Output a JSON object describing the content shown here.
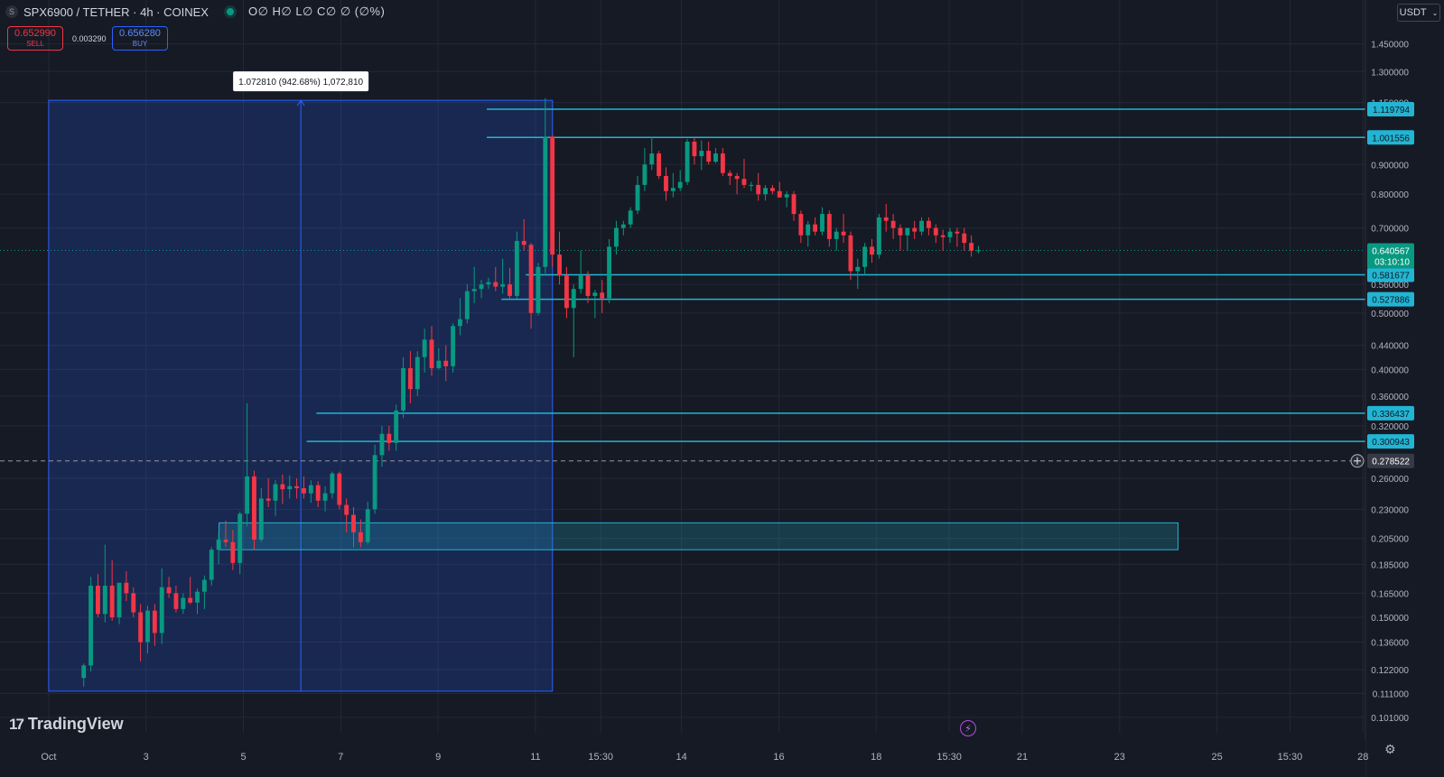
{
  "header": {
    "symbol_icon": "S",
    "title": "SPX6900 / TETHER · 4h · COINEX",
    "ohlc": "O∅ H∅ L∅ C∅ ∅ (∅%)"
  },
  "trade": {
    "sell_price": "0.652990",
    "sell_label": "SELL",
    "spread": "0.003290",
    "buy_price": "0.656280",
    "buy_label": "BUY"
  },
  "currency": {
    "label": "USDT",
    "icon": "chevron-down-icon"
  },
  "branding": {
    "name": "TradingView",
    "mark": "17"
  },
  "colors": {
    "up": "#089981",
    "down": "#f23645",
    "level": "#22b5d3",
    "range": "#2962ff",
    "background": "#161a25"
  },
  "chart_data": {
    "type": "candlestick",
    "y_scale": "log",
    "ylim": [
      0.095,
      1.55
    ],
    "y_ticks": [
      "1.450000",
      "1.300000",
      "1.150000",
      "0.900000",
      "0.800000",
      "0.700000",
      "0.560000",
      "0.500000",
      "0.440000",
      "0.400000",
      "0.360000",
      "0.320000",
      "0.260000",
      "0.230000",
      "0.205000",
      "0.185000",
      "0.165000",
      "0.150000",
      "0.136000",
      "0.122000",
      "0.111000",
      "0.101000"
    ],
    "x_ticks": [
      {
        "label": "Oct",
        "day": 1
      },
      {
        "label": "3",
        "day": 3
      },
      {
        "label": "5",
        "day": 5
      },
      {
        "label": "7",
        "day": 7
      },
      {
        "label": "9",
        "day": 9
      },
      {
        "label": "11",
        "day": 11
      },
      {
        "label": "15:30",
        "day": 12.34
      },
      {
        "label": "14",
        "day": 14
      },
      {
        "label": "16",
        "day": 16
      },
      {
        "label": "18",
        "day": 18
      },
      {
        "label": "15:30",
        "day": 19.5
      },
      {
        "label": "21",
        "day": 21
      },
      {
        "label": "23",
        "day": 23
      },
      {
        "label": "25",
        "day": 25
      },
      {
        "label": "15:30",
        "day": 26.5
      },
      {
        "label": "28",
        "day": 28
      }
    ],
    "xlim": [
      0.0,
      28.05
    ],
    "candles": [
      {
        "o": 0.118,
        "h": 0.125,
        "l": 0.114,
        "c": 0.124
      },
      {
        "o": 0.124,
        "h": 0.176,
        "l": 0.121,
        "c": 0.17
      },
      {
        "o": 0.17,
        "h": 0.178,
        "l": 0.15,
        "c": 0.152
      },
      {
        "o": 0.152,
        "h": 0.2,
        "l": 0.147,
        "c": 0.17
      },
      {
        "o": 0.17,
        "h": 0.188,
        "l": 0.148,
        "c": 0.15
      },
      {
        "o": 0.15,
        "h": 0.172,
        "l": 0.146,
        "c": 0.172
      },
      {
        "o": 0.172,
        "h": 0.18,
        "l": 0.16,
        "c": 0.165
      },
      {
        "o": 0.165,
        "h": 0.169,
        "l": 0.15,
        "c": 0.153
      },
      {
        "o": 0.153,
        "h": 0.158,
        "l": 0.126,
        "c": 0.136
      },
      {
        "o": 0.136,
        "h": 0.157,
        "l": 0.13,
        "c": 0.154
      },
      {
        "o": 0.154,
        "h": 0.158,
        "l": 0.134,
        "c": 0.141
      },
      {
        "o": 0.141,
        "h": 0.182,
        "l": 0.135,
        "c": 0.169
      },
      {
        "o": 0.169,
        "h": 0.176,
        "l": 0.162,
        "c": 0.165
      },
      {
        "o": 0.165,
        "h": 0.17,
        "l": 0.153,
        "c": 0.155
      },
      {
        "o": 0.155,
        "h": 0.165,
        "l": 0.152,
        "c": 0.162
      },
      {
        "o": 0.162,
        "h": 0.176,
        "l": 0.158,
        "c": 0.159
      },
      {
        "o": 0.159,
        "h": 0.168,
        "l": 0.152,
        "c": 0.166
      },
      {
        "o": 0.166,
        "h": 0.177,
        "l": 0.155,
        "c": 0.174
      },
      {
        "o": 0.174,
        "h": 0.198,
        "l": 0.17,
        "c": 0.196
      },
      {
        "o": 0.196,
        "h": 0.21,
        "l": 0.185,
        "c": 0.204
      },
      {
        "o": 0.204,
        "h": 0.22,
        "l": 0.198,
        "c": 0.202
      },
      {
        "o": 0.202,
        "h": 0.212,
        "l": 0.181,
        "c": 0.186
      },
      {
        "o": 0.186,
        "h": 0.228,
        "l": 0.178,
        "c": 0.226
      },
      {
        "o": 0.226,
        "h": 0.35,
        "l": 0.215,
        "c": 0.262
      },
      {
        "o": 0.262,
        "h": 0.268,
        "l": 0.196,
        "c": 0.204
      },
      {
        "o": 0.204,
        "h": 0.25,
        "l": 0.202,
        "c": 0.24
      },
      {
        "o": 0.24,
        "h": 0.26,
        "l": 0.232,
        "c": 0.238
      },
      {
        "o": 0.238,
        "h": 0.258,
        "l": 0.224,
        "c": 0.254
      },
      {
        "o": 0.254,
        "h": 0.264,
        "l": 0.235,
        "c": 0.249
      },
      {
        "o": 0.249,
        "h": 0.263,
        "l": 0.24,
        "c": 0.252
      },
      {
        "o": 0.252,
        "h": 0.26,
        "l": 0.24,
        "c": 0.25
      },
      {
        "o": 0.25,
        "h": 0.262,
        "l": 0.24,
        "c": 0.245
      },
      {
        "o": 0.245,
        "h": 0.258,
        "l": 0.236,
        "c": 0.253
      },
      {
        "o": 0.253,
        "h": 0.257,
        "l": 0.232,
        "c": 0.238
      },
      {
        "o": 0.238,
        "h": 0.252,
        "l": 0.228,
        "c": 0.245
      },
      {
        "o": 0.245,
        "h": 0.267,
        "l": 0.24,
        "c": 0.265
      },
      {
        "o": 0.265,
        "h": 0.267,
        "l": 0.23,
        "c": 0.234
      },
      {
        "o": 0.234,
        "h": 0.24,
        "l": 0.21,
        "c": 0.225
      },
      {
        "o": 0.225,
        "h": 0.232,
        "l": 0.198,
        "c": 0.21
      },
      {
        "o": 0.21,
        "h": 0.221,
        "l": 0.198,
        "c": 0.202
      },
      {
        "o": 0.202,
        "h": 0.237,
        "l": 0.2,
        "c": 0.23
      },
      {
        "o": 0.23,
        "h": 0.297,
        "l": 0.226,
        "c": 0.285
      },
      {
        "o": 0.285,
        "h": 0.32,
        "l": 0.272,
        "c": 0.31
      },
      {
        "o": 0.31,
        "h": 0.32,
        "l": 0.29,
        "c": 0.299
      },
      {
        "o": 0.299,
        "h": 0.348,
        "l": 0.29,
        "c": 0.34
      },
      {
        "o": 0.34,
        "h": 0.42,
        "l": 0.33,
        "c": 0.402
      },
      {
        "o": 0.402,
        "h": 0.43,
        "l": 0.35,
        "c": 0.37
      },
      {
        "o": 0.37,
        "h": 0.43,
        "l": 0.36,
        "c": 0.42
      },
      {
        "o": 0.42,
        "h": 0.47,
        "l": 0.395,
        "c": 0.45
      },
      {
        "o": 0.45,
        "h": 0.475,
        "l": 0.39,
        "c": 0.402
      },
      {
        "o": 0.402,
        "h": 0.435,
        "l": 0.4,
        "c": 0.414
      },
      {
        "o": 0.414,
        "h": 0.44,
        "l": 0.382,
        "c": 0.405
      },
      {
        "o": 0.405,
        "h": 0.48,
        "l": 0.395,
        "c": 0.475
      },
      {
        "o": 0.475,
        "h": 0.53,
        "l": 0.458,
        "c": 0.488
      },
      {
        "o": 0.488,
        "h": 0.56,
        "l": 0.48,
        "c": 0.545
      },
      {
        "o": 0.545,
        "h": 0.6,
        "l": 0.52,
        "c": 0.55
      },
      {
        "o": 0.55,
        "h": 0.57,
        "l": 0.53,
        "c": 0.56
      },
      {
        "o": 0.56,
        "h": 0.575,
        "l": 0.55,
        "c": 0.565
      },
      {
        "o": 0.565,
        "h": 0.6,
        "l": 0.545,
        "c": 0.555
      },
      {
        "o": 0.555,
        "h": 0.62,
        "l": 0.54,
        "c": 0.56
      },
      {
        "o": 0.56,
        "h": 0.598,
        "l": 0.53,
        "c": 0.535
      },
      {
        "o": 0.535,
        "h": 0.69,
        "l": 0.53,
        "c": 0.665
      },
      {
        "o": 0.665,
        "h": 0.725,
        "l": 0.64,
        "c": 0.655
      },
      {
        "o": 0.655,
        "h": 0.66,
        "l": 0.47,
        "c": 0.5
      },
      {
        "o": 0.5,
        "h": 0.61,
        "l": 0.495,
        "c": 0.6
      },
      {
        "o": 0.6,
        "h": 1.17,
        "l": 0.585,
        "c": 1.005
      },
      {
        "o": 1.005,
        "h": 1.01,
        "l": 0.6,
        "c": 0.63
      },
      {
        "o": 0.63,
        "h": 0.69,
        "l": 0.56,
        "c": 0.58
      },
      {
        "o": 0.58,
        "h": 0.6,
        "l": 0.49,
        "c": 0.51
      },
      {
        "o": 0.51,
        "h": 0.56,
        "l": 0.42,
        "c": 0.55
      },
      {
        "o": 0.55,
        "h": 0.64,
        "l": 0.54,
        "c": 0.58
      },
      {
        "o": 0.58,
        "h": 0.59,
        "l": 0.52,
        "c": 0.535
      },
      {
        "o": 0.535,
        "h": 0.548,
        "l": 0.49,
        "c": 0.542
      },
      {
        "o": 0.542,
        "h": 0.57,
        "l": 0.5,
        "c": 0.53
      },
      {
        "o": 0.53,
        "h": 0.67,
        "l": 0.52,
        "c": 0.65
      },
      {
        "o": 0.65,
        "h": 0.72,
        "l": 0.63,
        "c": 0.7
      },
      {
        "o": 0.7,
        "h": 0.72,
        "l": 0.68,
        "c": 0.71
      },
      {
        "o": 0.71,
        "h": 0.76,
        "l": 0.7,
        "c": 0.75
      },
      {
        "o": 0.75,
        "h": 0.86,
        "l": 0.74,
        "c": 0.83
      },
      {
        "o": 0.83,
        "h": 0.96,
        "l": 0.81,
        "c": 0.9
      },
      {
        "o": 0.9,
        "h": 1.005,
        "l": 0.88,
        "c": 0.94
      },
      {
        "o": 0.94,
        "h": 0.95,
        "l": 0.85,
        "c": 0.86
      },
      {
        "o": 0.86,
        "h": 0.89,
        "l": 0.78,
        "c": 0.81
      },
      {
        "o": 0.81,
        "h": 0.87,
        "l": 0.79,
        "c": 0.82
      },
      {
        "o": 0.82,
        "h": 0.88,
        "l": 0.81,
        "c": 0.84
      },
      {
        "o": 0.84,
        "h": 0.995,
        "l": 0.83,
        "c": 0.985
      },
      {
        "o": 0.985,
        "h": 1.0,
        "l": 0.9,
        "c": 0.93
      },
      {
        "o": 0.93,
        "h": 0.99,
        "l": 0.88,
        "c": 0.95
      },
      {
        "o": 0.95,
        "h": 0.985,
        "l": 0.9,
        "c": 0.91
      },
      {
        "o": 0.91,
        "h": 0.96,
        "l": 0.905,
        "c": 0.94
      },
      {
        "o": 0.94,
        "h": 0.96,
        "l": 0.86,
        "c": 0.87
      },
      {
        "o": 0.87,
        "h": 0.88,
        "l": 0.83,
        "c": 0.86
      },
      {
        "o": 0.86,
        "h": 0.87,
        "l": 0.8,
        "c": 0.85
      },
      {
        "o": 0.85,
        "h": 0.92,
        "l": 0.82,
        "c": 0.83
      },
      {
        "o": 0.83,
        "h": 0.84,
        "l": 0.81,
        "c": 0.83
      },
      {
        "o": 0.83,
        "h": 0.87,
        "l": 0.78,
        "c": 0.8
      },
      {
        "o": 0.8,
        "h": 0.83,
        "l": 0.78,
        "c": 0.82
      },
      {
        "o": 0.82,
        "h": 0.83,
        "l": 0.8,
        "c": 0.81
      },
      {
        "o": 0.81,
        "h": 0.84,
        "l": 0.79,
        "c": 0.79
      },
      {
        "o": 0.79,
        "h": 0.81,
        "l": 0.76,
        "c": 0.8
      },
      {
        "o": 0.8,
        "h": 0.81,
        "l": 0.72,
        "c": 0.74
      },
      {
        "o": 0.74,
        "h": 0.75,
        "l": 0.66,
        "c": 0.68
      },
      {
        "o": 0.68,
        "h": 0.72,
        "l": 0.65,
        "c": 0.71
      },
      {
        "o": 0.71,
        "h": 0.73,
        "l": 0.68,
        "c": 0.69
      },
      {
        "o": 0.69,
        "h": 0.76,
        "l": 0.68,
        "c": 0.74
      },
      {
        "o": 0.74,
        "h": 0.75,
        "l": 0.65,
        "c": 0.67
      },
      {
        "o": 0.67,
        "h": 0.7,
        "l": 0.64,
        "c": 0.69
      },
      {
        "o": 0.69,
        "h": 0.74,
        "l": 0.66,
        "c": 0.68
      },
      {
        "o": 0.68,
        "h": 0.69,
        "l": 0.57,
        "c": 0.59
      },
      {
        "o": 0.59,
        "h": 0.62,
        "l": 0.55,
        "c": 0.6
      },
      {
        "o": 0.6,
        "h": 0.66,
        "l": 0.58,
        "c": 0.65
      },
      {
        "o": 0.65,
        "h": 0.67,
        "l": 0.61,
        "c": 0.63
      },
      {
        "o": 0.63,
        "h": 0.74,
        "l": 0.62,
        "c": 0.73
      },
      {
        "o": 0.73,
        "h": 0.77,
        "l": 0.69,
        "c": 0.72
      },
      {
        "o": 0.72,
        "h": 0.74,
        "l": 0.67,
        "c": 0.7
      },
      {
        "o": 0.7,
        "h": 0.71,
        "l": 0.64,
        "c": 0.68
      },
      {
        "o": 0.68,
        "h": 0.7,
        "l": 0.64,
        "c": 0.7
      },
      {
        "o": 0.7,
        "h": 0.72,
        "l": 0.67,
        "c": 0.69
      },
      {
        "o": 0.69,
        "h": 0.73,
        "l": 0.68,
        "c": 0.72
      },
      {
        "o": 0.72,
        "h": 0.73,
        "l": 0.68,
        "c": 0.7
      },
      {
        "o": 0.7,
        "h": 0.71,
        "l": 0.66,
        "c": 0.68
      },
      {
        "o": 0.68,
        "h": 0.695,
        "l": 0.64,
        "c": 0.675
      },
      {
        "o": 0.675,
        "h": 0.7,
        "l": 0.66,
        "c": 0.69
      },
      {
        "o": 0.69,
        "h": 0.7,
        "l": 0.65,
        "c": 0.685
      },
      {
        "o": 0.685,
        "h": 0.7,
        "l": 0.64,
        "c": 0.66
      },
      {
        "o": 0.66,
        "h": 0.68,
        "l": 0.625,
        "c": 0.64
      },
      {
        "o": 0.64,
        "h": 0.652,
        "l": 0.633,
        "c": 0.641
      }
    ],
    "levels": [
      {
        "price": 1.119794,
        "label": "1.119794",
        "from_day": 10.0
      },
      {
        "price": 1.001556,
        "label": "1.001556",
        "from_day": 10.0
      },
      {
        "price": 0.581677,
        "label": "0.581677",
        "from_day": 10.8
      },
      {
        "price": 0.527886,
        "label": "0.527886",
        "from_day": 10.3
      },
      {
        "price": 0.336437,
        "label": "0.336437",
        "from_day": 6.5
      },
      {
        "price": 0.300943,
        "label": "0.300943",
        "from_day": 6.3
      }
    ],
    "zone": {
      "top": 0.218,
      "bottom": 0.196,
      "from_day": 4.5,
      "to_day": 24.2
    },
    "range_box": {
      "top": 1.16,
      "bottom": 0.112,
      "from_day": 1.0,
      "to_day": 11.35,
      "arrow_day": 6.18
    },
    "range_label": "1.072810 (942.68%) 1,072,810",
    "current_price": {
      "price": 0.640567,
      "label": "0.640567",
      "countdown": "03:10:10"
    },
    "crosshair": {
      "price": 0.278522,
      "label": "0.278522"
    }
  }
}
